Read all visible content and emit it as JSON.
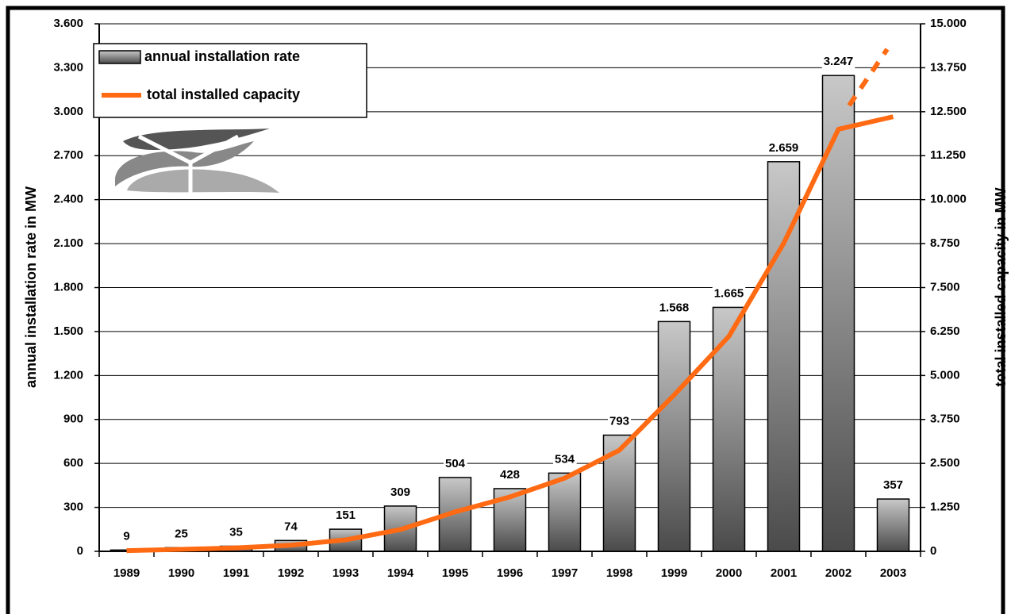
{
  "chart_data": {
    "type": "bar",
    "categories": [
      "1989",
      "1990",
      "1991",
      "1992",
      "1993",
      "1994",
      "1995",
      "1996",
      "1997",
      "1998",
      "1999",
      "2000",
      "2001",
      "2002",
      "2003"
    ],
    "series": [
      {
        "name": "annual installation rate",
        "color": "#8c8c8c",
        "values": [
          9,
          25,
          35,
          74,
          151,
          309,
          504,
          428,
          534,
          793,
          1568,
          1665,
          2659,
          3247,
          357
        ],
        "value_labels": [
          "9",
          "25",
          "35",
          "74",
          "151",
          "309",
          "504",
          "428",
          "534",
          "793",
          "1.568",
          "1.665",
          "2.659",
          "3.247",
          "357"
        ]
      },
      {
        "name": "total installed capacity",
        "color": "#ff6a13",
        "type": "line",
        "axis": "y2",
        "values": [
          20,
          56,
          98,
          174,
          326,
          618,
          1121,
          1546,
          2080,
          2875,
          4445,
          6113,
          8754,
          12001,
          12358
        ]
      }
    ],
    "ylabel": "annual installation rate in MW",
    "y2label": "total installed capacity in MW",
    "ylim": [
      0,
      3600
    ],
    "yticks": [
      0,
      300,
      600,
      900,
      {
        "value": 1200,
        "label": "1.200"
      },
      {
        "value": 1500,
        "label": "1.500"
      },
      {
        "value": 1800,
        "label": "1.800"
      },
      {
        "value": 2100,
        "label": "2.100"
      },
      {
        "value": 2400,
        "label": "2.400"
      },
      {
        "value": 2700,
        "label": "2.700"
      },
      {
        "value": 3000,
        "label": "3.000"
      },
      {
        "value": 3300,
        "label": "3.300"
      },
      {
        "value": 3600,
        "label": "3.600"
      }
    ],
    "y2lim": [
      0,
      15000
    ],
    "y2ticks": [
      0,
      {
        "value": 1250,
        "label": "1.250"
      },
      {
        "value": 2500,
        "label": "2.500"
      },
      {
        "value": 3750,
        "label": "3.750"
      },
      {
        "value": 5000,
        "label": "5.000"
      },
      {
        "value": 6250,
        "label": "6.250"
      },
      {
        "value": 7500,
        "label": "7.500"
      },
      {
        "value": 8750,
        "label": "8.750"
      },
      {
        "value": 10000,
        "label": "10.000"
      },
      {
        "value": 11250,
        "label": "11.250"
      },
      {
        "value": 12500,
        "label": "12.500"
      },
      {
        "value": 13750,
        "label": "13.750"
      },
      {
        "value": 15000,
        "label": "15.000"
      }
    ],
    "grid": true
  }
}
